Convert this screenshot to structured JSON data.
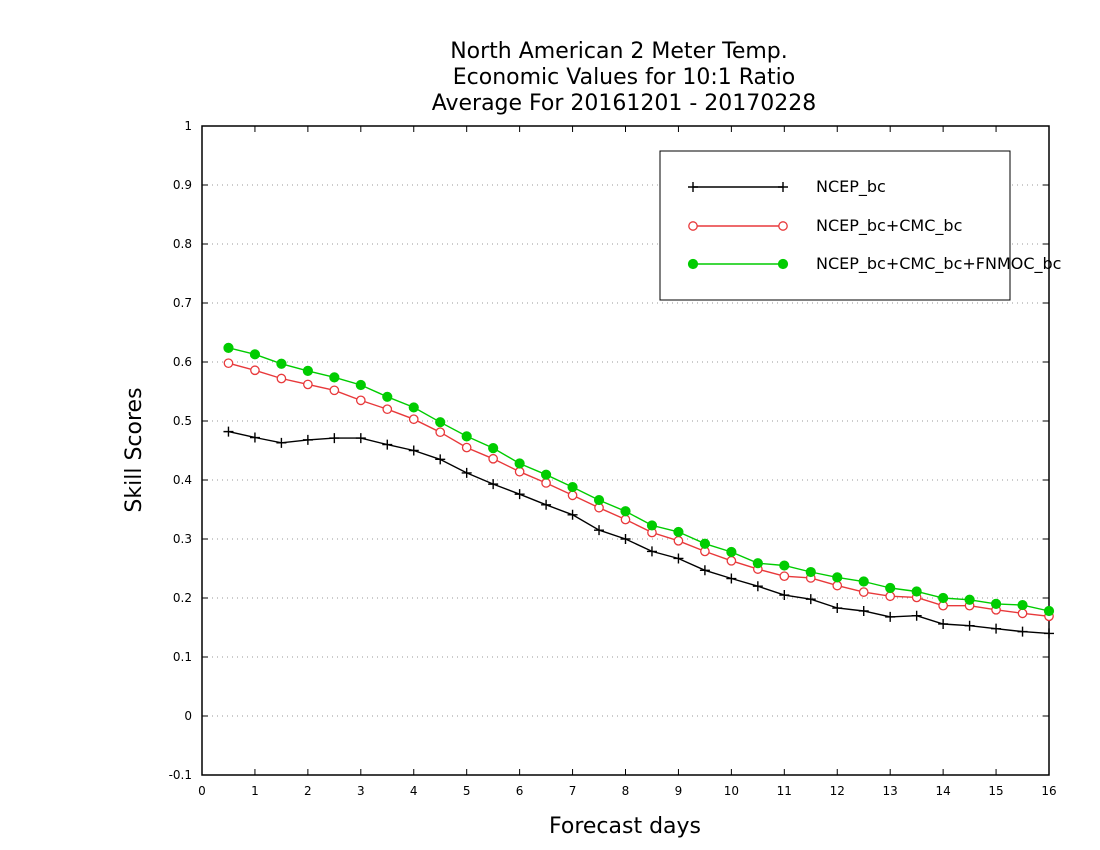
{
  "chart_data": {
    "type": "line",
    "title_lines": [
      "North American 2 Meter Temp.",
      "Economic Values for 10:1 Ratio",
      "Average For 20161201 - 20170228"
    ],
    "xlabel": "Forecast days",
    "ylabel": "Skill Scores",
    "xlim": [
      0,
      16
    ],
    "ylim": [
      -0.1,
      1
    ],
    "x_ticks": [
      0,
      1,
      2,
      3,
      4,
      5,
      6,
      7,
      8,
      9,
      10,
      11,
      12,
      13,
      14,
      15,
      16
    ],
    "x_tick_labels": [
      "0",
      "1",
      "2",
      "3",
      "4",
      "5",
      "6",
      "7",
      "8",
      "9",
      "10",
      "11",
      "12",
      "13",
      "14",
      "15",
      "16"
    ],
    "y_ticks": [
      -0.1,
      0,
      0.1,
      0.2,
      0.3,
      0.4,
      0.5,
      0.6,
      0.7,
      0.8,
      0.9,
      1
    ],
    "y_tick_labels": [
      "-0.1",
      "0",
      "0.1",
      "0.2",
      "0.3",
      "0.4",
      "0.5",
      "0.6",
      "0.7",
      "0.8",
      "0.9",
      "1"
    ],
    "grid": "horizontal dotted",
    "legend_position": "top-right",
    "x": [
      0.5,
      1,
      1.5,
      2,
      2.5,
      3,
      3.5,
      4,
      4.5,
      5,
      5.5,
      6,
      6.5,
      7,
      7.5,
      8,
      8.5,
      9,
      9.5,
      10,
      10.5,
      11,
      11.5,
      12,
      12.5,
      13,
      13.5,
      14,
      14.5,
      15,
      15.5,
      16
    ],
    "series": [
      {
        "name": "NCEP_bc",
        "color": "#000000",
        "marker": "plus",
        "values": [
          0.482,
          0.472,
          0.463,
          0.468,
          0.471,
          0.471,
          0.46,
          0.45,
          0.435,
          0.412,
          0.393,
          0.376,
          0.358,
          0.341,
          0.315,
          0.3,
          0.279,
          0.267,
          0.247,
          0.233,
          0.22,
          0.205,
          0.198,
          0.183,
          0.178,
          0.168,
          0.17,
          0.156,
          0.153,
          0.148,
          0.143,
          0.14
        ]
      },
      {
        "name": "NCEP_bc+CMC_bc",
        "color": "#e8393b",
        "marker": "open-circle",
        "values": [
          0.598,
          0.586,
          0.572,
          0.562,
          0.552,
          0.535,
          0.52,
          0.503,
          0.481,
          0.455,
          0.436,
          0.414,
          0.395,
          0.374,
          0.353,
          0.333,
          0.311,
          0.297,
          0.279,
          0.263,
          0.249,
          0.237,
          0.234,
          0.221,
          0.21,
          0.203,
          0.201,
          0.187,
          0.187,
          0.18,
          0.174,
          0.169
        ]
      },
      {
        "name": "NCEP_bc+CMC_bc+FNMOC_bc",
        "color": "#00cc00",
        "marker": "filled-circle",
        "values": [
          0.624,
          0.613,
          0.597,
          0.585,
          0.574,
          0.561,
          0.541,
          0.523,
          0.498,
          0.474,
          0.454,
          0.428,
          0.409,
          0.388,
          0.366,
          0.347,
          0.323,
          0.312,
          0.292,
          0.278,
          0.259,
          0.255,
          0.244,
          0.235,
          0.228,
          0.217,
          0.211,
          0.2,
          0.197,
          0.19,
          0.188,
          0.178
        ]
      }
    ]
  }
}
